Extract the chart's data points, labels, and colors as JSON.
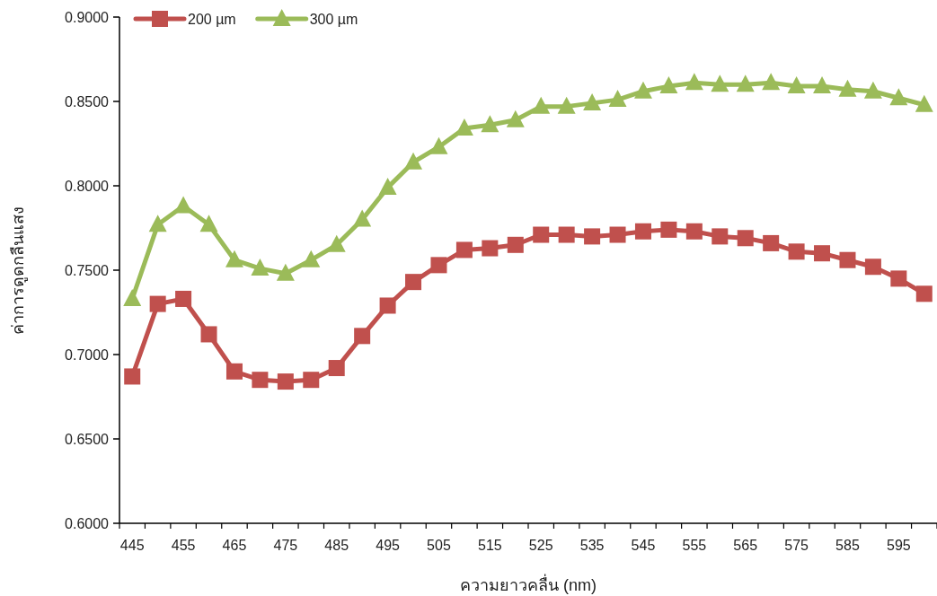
{
  "chart_data": {
    "type": "line",
    "xlabel": "ความยาวคลื่น (nm)",
    "ylabel": "ค่าการดูดกลืนแสง",
    "categories": [
      "445",
      null,
      "455",
      null,
      "465",
      null,
      "475",
      null,
      "485",
      null,
      "495",
      null,
      "505",
      null,
      "515",
      null,
      "525",
      null,
      "535",
      null,
      "545",
      null,
      "555",
      null,
      "565",
      null,
      "575",
      null,
      "585",
      null,
      "595",
      null
    ],
    "series": [
      {
        "name": "200 µm",
        "color": "#c0504d",
        "marker": "square",
        "values": [
          0.687,
          0.73,
          0.733,
          0.712,
          0.69,
          0.685,
          0.684,
          0.685,
          0.692,
          0.711,
          0.729,
          0.743,
          0.753,
          0.762,
          0.763,
          0.765,
          0.771,
          0.771,
          0.77,
          0.771,
          0.773,
          0.774,
          0.773,
          0.77,
          0.769,
          0.766,
          0.761,
          0.76,
          0.756,
          0.752,
          0.745,
          0.736
        ]
      },
      {
        "name": "300 µm",
        "color": "#9bbb59",
        "marker": "triangle",
        "values": [
          0.733,
          0.777,
          0.788,
          0.777,
          0.756,
          0.751,
          0.748,
          0.756,
          0.765,
          0.78,
          0.799,
          0.814,
          0.823,
          0.834,
          0.836,
          0.839,
          0.847,
          0.847,
          0.849,
          0.851,
          0.856,
          0.859,
          0.861,
          0.86,
          0.86,
          0.861,
          0.859,
          0.859,
          0.857,
          0.856,
          0.852,
          0.848
        ]
      }
    ],
    "ylim": [
      0.6,
      0.9
    ],
    "yticks": [
      {
        "value": 0.6,
        "label": "0.6000"
      },
      {
        "value": 0.65,
        "label": "0.6500"
      },
      {
        "value": 0.7,
        "label": "0.7000"
      },
      {
        "value": 0.75,
        "label": "0.7500"
      },
      {
        "value": 0.8,
        "label": "0.8000"
      },
      {
        "value": 0.85,
        "label": "0.8500"
      },
      {
        "value": 0.9,
        "label": "0.9000"
      }
    ],
    "legend": "top left",
    "grid": false,
    "line_style": "solid"
  }
}
